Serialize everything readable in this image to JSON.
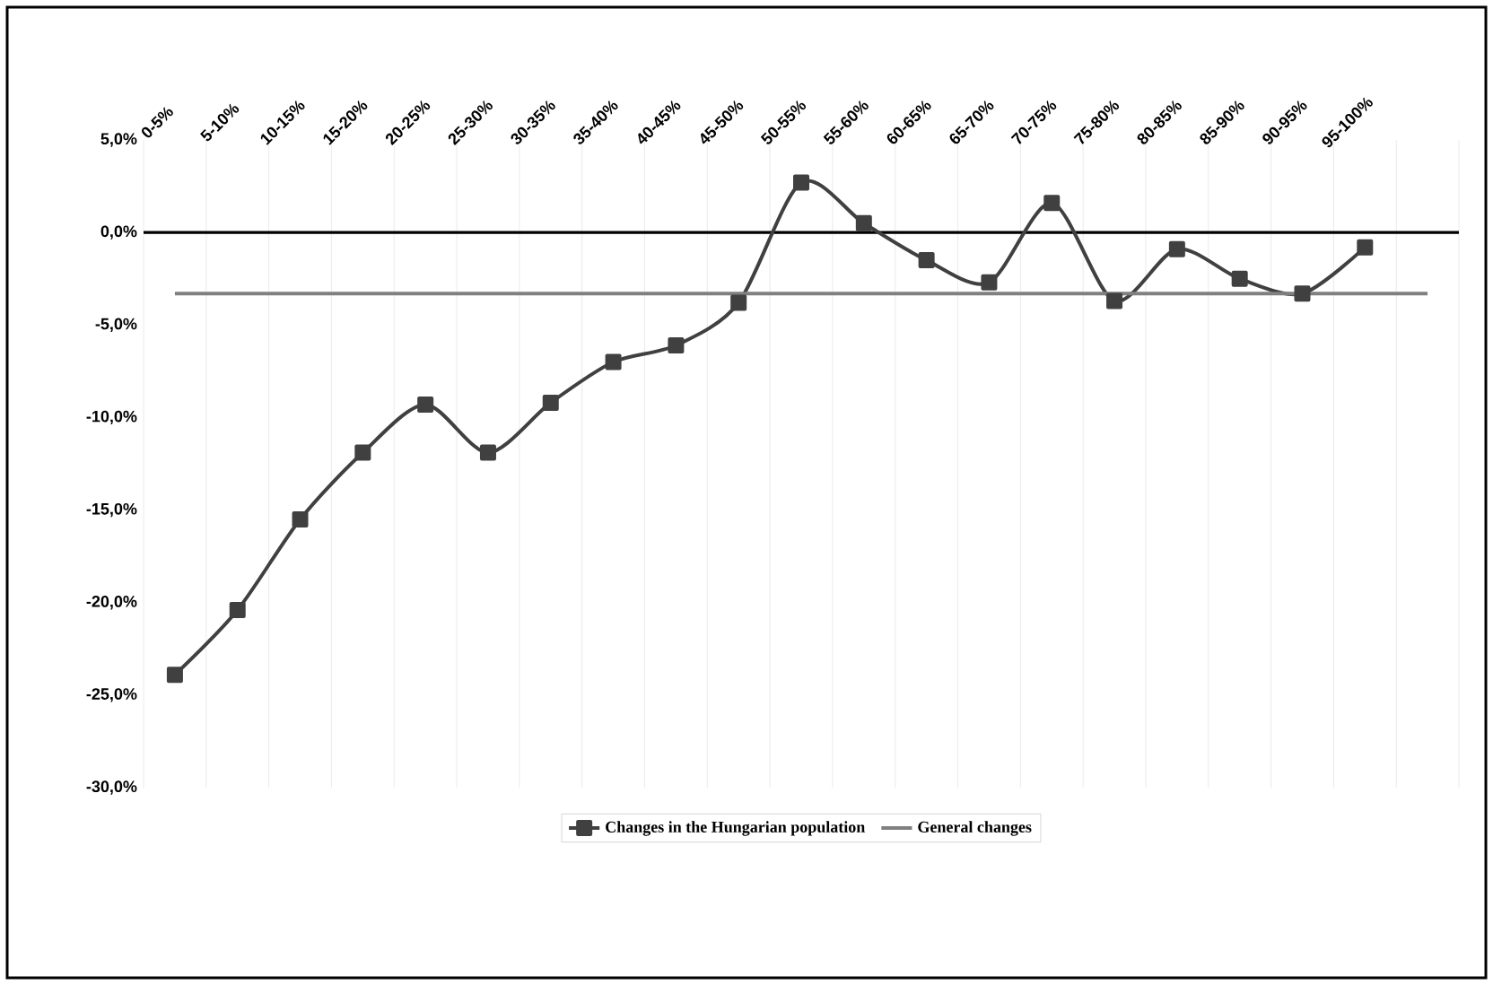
{
  "chart_data": {
    "type": "line",
    "categories": [
      "0-5%",
      "5-10%",
      "10-15%",
      "15-20%",
      "20-25%",
      "25-30%",
      "30-35%",
      "35-40%",
      "40-45%",
      "45-50%",
      "50-55%",
      "55-60%",
      "60-65%",
      "65-70%",
      "70-75%",
      "75-80%",
      "80-85%",
      "85-90%",
      "90-95%",
      "95-100%",
      null
    ],
    "series": [
      {
        "name": "Changes in the Hungarian population",
        "color": "#404040",
        "marker": "square",
        "values": [
          -23.9,
          -20.4,
          -15.5,
          -11.9,
          -9.3,
          -11.9,
          -9.2,
          -7.0,
          -6.1,
          -3.8,
          2.7,
          0.5,
          -1.5,
          -2.7,
          1.6,
          -3.7,
          -0.9,
          -2.5,
          -3.3,
          -0.8,
          null
        ]
      },
      {
        "name": "General changes",
        "color": "#808080",
        "marker": "none",
        "values": [
          -3.3,
          -3.3,
          -3.3,
          -3.3,
          -3.3,
          -3.3,
          -3.3,
          -3.3,
          -3.3,
          -3.3,
          -3.3,
          -3.3,
          -3.3,
          -3.3,
          -3.3,
          -3.3,
          -3.3,
          -3.3,
          -3.3,
          -3.3,
          -3.3
        ]
      }
    ],
    "ylim": [
      -30,
      5
    ],
    "yticks": [
      {
        "value": 5,
        "label": "5,0%"
      },
      {
        "value": 0,
        "label": "0,0%"
      },
      {
        "value": -5,
        "label": "-5,0%"
      },
      {
        "value": -10,
        "label": "-10,0%"
      },
      {
        "value": -15,
        "label": "-15,0%"
      },
      {
        "value": -20,
        "label": "-20,0%"
      },
      {
        "value": -25,
        "label": "-25,0%"
      },
      {
        "value": -30,
        "label": "-30,0%"
      }
    ],
    "ref_lines": [
      {
        "axis": "y",
        "value": 0,
        "color": "#000000"
      }
    ],
    "grid": "x",
    "legend": "bottom"
  }
}
